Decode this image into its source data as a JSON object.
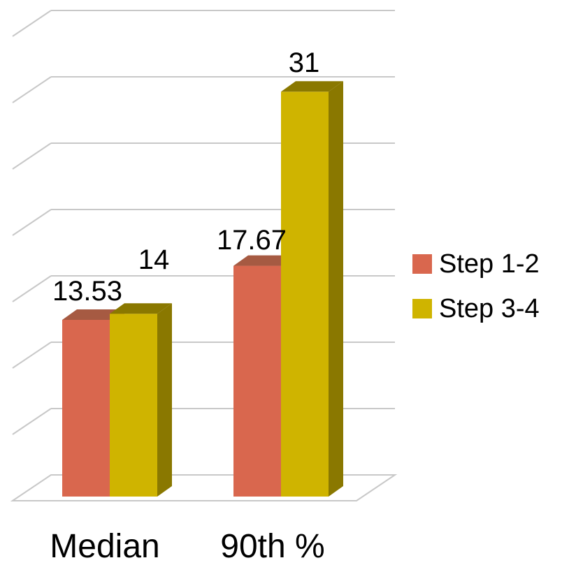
{
  "chart_data": {
    "type": "bar",
    "categories": [
      "Median",
      "90th %"
    ],
    "series": [
      {
        "name": "Step 1-2",
        "values": [
          13.53,
          17.67
        ],
        "color": "#d9674e",
        "top_color": "#a65a42"
      },
      {
        "name": "Step 3-4",
        "values": [
          14,
          31
        ],
        "color": "#cfb400",
        "top_color": "#8a7800",
        "side_color": "#8a7800"
      }
    ],
    "data_labels": [
      "13.53",
      "14",
      "17.67",
      "31"
    ],
    "ylim": [
      0,
      35
    ],
    "grid": true,
    "legend": "right",
    "title": "",
    "xlabel": "",
    "ylabel": ""
  }
}
